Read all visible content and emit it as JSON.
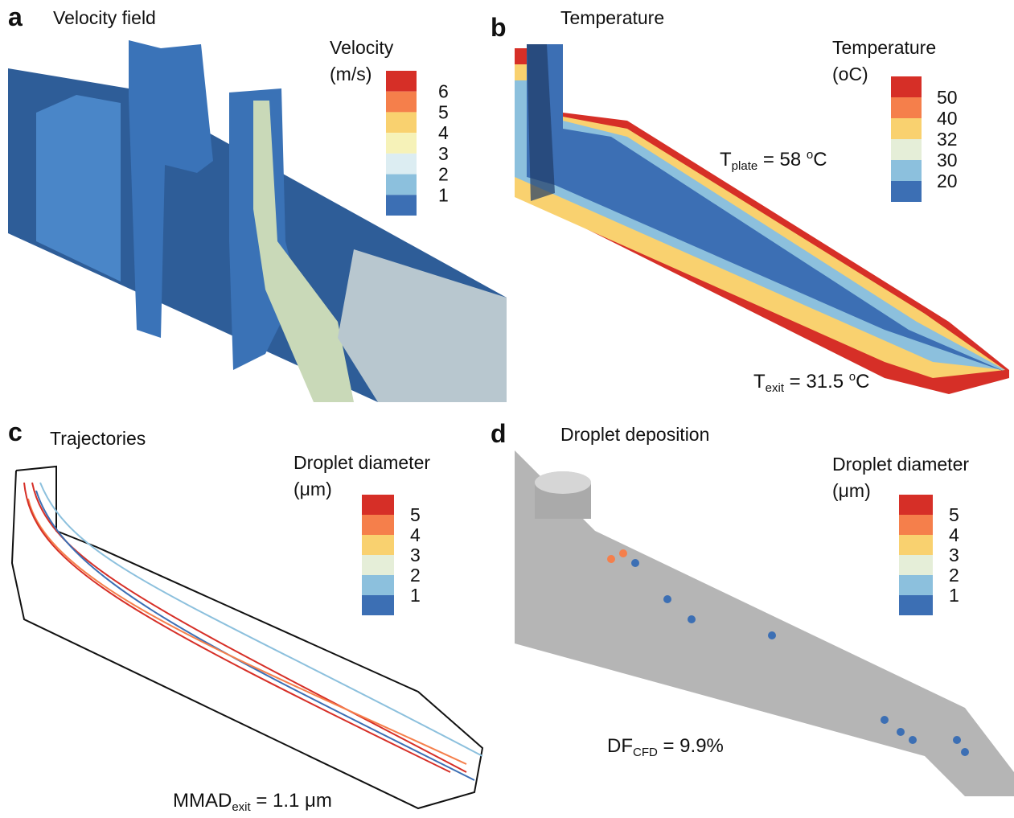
{
  "panels": [
    {
      "letter": "a",
      "title": "Velocity field",
      "legend": {
        "title": [
          "Velocity",
          "(m/s)"
        ],
        "labels": [
          "6",
          "5",
          "4",
          "3",
          "2",
          "1"
        ],
        "colors": [
          "#d62f27",
          "#f57f4b",
          "#f9d16f",
          "#f6f2b8",
          "#dcedf2",
          "#8cc0dd",
          "#3c6fb4"
        ]
      },
      "annotations": []
    },
    {
      "letter": "b",
      "title": "Temperature",
      "legend": {
        "title": [
          "Temperature",
          "(oC)"
        ],
        "labels": [
          "50",
          "40",
          "32",
          "30",
          "20"
        ],
        "colors": [
          "#d62f27",
          "#f57f4b",
          "#f9d16f",
          "#e5eed8",
          "#8cc0dd",
          "#3c6fb4"
        ]
      },
      "annotations": [
        {
          "parts": [
            {
              "text": "T",
              "style": "normal"
            },
            {
              "text": "plate",
              "style": "sub"
            },
            {
              "text": " = 58 ",
              "style": "normal"
            },
            {
              "text": "o",
              "style": "sup"
            },
            {
              "text": "C",
              "style": "normal"
            }
          ]
        },
        {
          "parts": [
            {
              "text": "T",
              "style": "normal"
            },
            {
              "text": "exit",
              "style": "sub"
            },
            {
              "text": " = 31.5 ",
              "style": "normal"
            },
            {
              "text": "o",
              "style": "sup"
            },
            {
              "text": "C",
              "style": "normal"
            }
          ]
        }
      ]
    },
    {
      "letter": "c",
      "title": "Trajectories",
      "legend": {
        "title": [
          "Droplet diameter",
          "(μm)"
        ],
        "labels": [
          "5",
          "4",
          "3",
          "2",
          "1"
        ],
        "colors": [
          "#d62f27",
          "#f57f4b",
          "#f9d16f",
          "#e5eed8",
          "#8cc0dd",
          "#3c6fb4"
        ]
      },
      "annotations": [
        {
          "parts": [
            {
              "text": "MMAD",
              "style": "normal"
            },
            {
              "text": "exit",
              "style": "sub"
            },
            {
              "text": " = 1.1 μm",
              "style": "normal"
            }
          ]
        }
      ]
    },
    {
      "letter": "d",
      "title": "Droplet deposition",
      "legend": {
        "title": [
          "Droplet diameter",
          "(μm)"
        ],
        "labels": [
          "5",
          "4",
          "3",
          "2",
          "1"
        ],
        "colors": [
          "#d62f27",
          "#f57f4b",
          "#f9d16f",
          "#e5eed8",
          "#8cc0dd",
          "#3c6fb4"
        ]
      },
      "annotations": [
        {
          "parts": [
            {
              "text": "DF",
              "style": "normal"
            },
            {
              "text": "CFD",
              "style": "sub"
            },
            {
              "text": " = 9.9%",
              "style": "normal"
            }
          ]
        }
      ]
    }
  ]
}
